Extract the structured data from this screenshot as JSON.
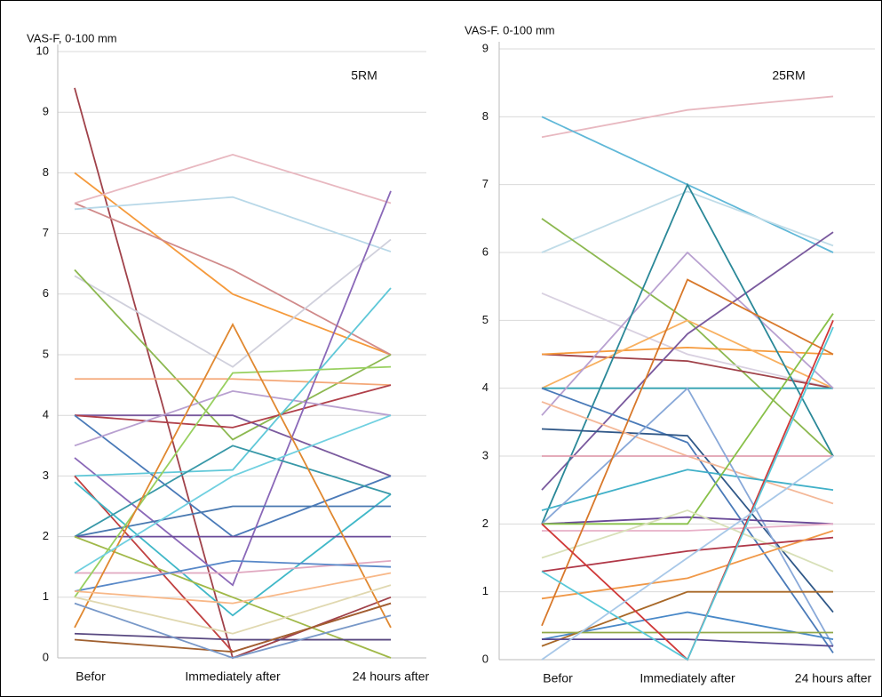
{
  "chart_data": [
    {
      "type": "line",
      "title": "VAS-F, 0-100 mm",
      "annotation": "5RM",
      "categories": [
        "Befor",
        "Immediately after",
        "24 hours after"
      ],
      "ylim": [
        0,
        10
      ],
      "yticks": [
        0,
        1,
        2,
        3,
        4,
        5,
        6,
        7,
        8,
        9,
        10
      ],
      "grid": true,
      "series": [
        {
          "color": "#a0424a",
          "values": [
            9.4,
            0,
            1
          ]
        },
        {
          "color": "#f59a3c",
          "values": [
            8,
            6,
            5
          ]
        },
        {
          "color": "#d08a8a",
          "values": [
            7.5,
            6.4,
            5
          ]
        },
        {
          "color": "#e8b8c0",
          "values": [
            7.5,
            8.3,
            7.5
          ]
        },
        {
          "color": "#b8d8e8",
          "values": [
            7.4,
            7.6,
            6.7
          ]
        },
        {
          "color": "#d0d0dc",
          "values": [
            6.3,
            4.8,
            6.9
          ]
        },
        {
          "color": "#8cb850",
          "values": [
            6.4,
            3.6,
            5
          ]
        },
        {
          "color": "#f4a878",
          "values": [
            4.6,
            4.6,
            4.5
          ]
        },
        {
          "color": "#7a5a9e",
          "values": [
            4,
            4,
            3
          ]
        },
        {
          "color": "#b0404a",
          "values": [
            4,
            3.8,
            4.5
          ]
        },
        {
          "color": "#4a7ab8",
          "values": [
            4,
            2,
            3
          ]
        },
        {
          "color": "#b8a0d0",
          "values": [
            3.5,
            4.4,
            4
          ]
        },
        {
          "color": "#8a68b8",
          "values": [
            3.3,
            1.2,
            7.7
          ]
        },
        {
          "color": "#60c8d8",
          "values": [
            3,
            3.1,
            6.1
          ]
        },
        {
          "color": "#c04040",
          "values": [
            3,
            0.1,
            0.9
          ]
        },
        {
          "color": "#40b8c8",
          "values": [
            2.9,
            0.7,
            2.7
          ]
        },
        {
          "color": "#3898a8",
          "values": [
            2,
            3.5,
            2.7
          ]
        },
        {
          "color": "#4878b0",
          "values": [
            2,
            2.5,
            2.5
          ]
        },
        {
          "color": "#6a4a98",
          "values": [
            2,
            2,
            2
          ]
        },
        {
          "color": "#a0b848",
          "values": [
            2,
            1,
            0
          ]
        },
        {
          "color": "#e0a8c0",
          "values": [
            1.4,
            1.4,
            1.6
          ]
        },
        {
          "color": "#5888c8",
          "values": [
            1.1,
            1.6,
            1.5
          ]
        },
        {
          "color": "#98d060",
          "values": [
            1,
            4.7,
            4.8
          ]
        },
        {
          "color": "#e08830",
          "values": [
            0.5,
            5.5,
            0.5
          ]
        },
        {
          "color": "#f8b888",
          "values": [
            1.1,
            0.9,
            1.4
          ]
        },
        {
          "color": "#e0d8b0",
          "values": [
            1,
            0.4,
            1.2
          ]
        },
        {
          "color": "#584880",
          "values": [
            0.4,
            0.3,
            0.3
          ]
        },
        {
          "color": "#a06030",
          "values": [
            0.3,
            0.1,
            0.9
          ]
        },
        {
          "color": "#7898c8",
          "values": [
            0.9,
            0,
            0.7
          ]
        },
        {
          "color": "#70d0e0",
          "values": [
            1.4,
            3,
            4
          ]
        }
      ]
    },
    {
      "type": "line",
      "title": "VAS-F. 0-100 mm",
      "annotation": "25RM",
      "categories": [
        "Befor",
        "Immediately after",
        "24 hours after"
      ],
      "ylim": [
        0,
        9
      ],
      "yticks": [
        0,
        1,
        2,
        3,
        4,
        5,
        6,
        7,
        8,
        9
      ],
      "grid": true,
      "series": [
        {
          "color": "#e8b8c0",
          "values": [
            7.7,
            8.1,
            8.3
          ]
        },
        {
          "color": "#60b8d8",
          "values": [
            8,
            7,
            6
          ]
        },
        {
          "color": "#c0dce8",
          "values": [
            6,
            6.9,
            6.1
          ]
        },
        {
          "color": "#8cb850",
          "values": [
            6.5,
            5,
            3
          ]
        },
        {
          "color": "#d8d0e0",
          "values": [
            5.4,
            4.5,
            4
          ]
        },
        {
          "color": "#a0424a",
          "values": [
            4.5,
            4.4,
            4
          ]
        },
        {
          "color": "#f59a3c",
          "values": [
            4.5,
            4.6,
            4.5
          ]
        },
        {
          "color": "#f8b060",
          "values": [
            4,
            5,
            4
          ]
        },
        {
          "color": "#30a0b0",
          "values": [
            4,
            4,
            4
          ]
        },
        {
          "color": "#b8a0d0",
          "values": [
            3.6,
            6,
            4
          ]
        },
        {
          "color": "#7a5a9e",
          "values": [
            2.5,
            4.8,
            6.3
          ]
        },
        {
          "color": "#2a8898",
          "values": [
            2,
            7,
            3
          ]
        },
        {
          "color": "#4a7ab8",
          "values": [
            4,
            3.2,
            0.1
          ]
        },
        {
          "color": "#305888",
          "values": [
            3.4,
            3.3,
            0.7
          ]
        },
        {
          "color": "#f4b898",
          "values": [
            3.8,
            3,
            2.3
          ]
        },
        {
          "color": "#e0a0b0",
          "values": [
            3,
            3,
            3
          ]
        },
        {
          "color": "#40b0c8",
          "values": [
            2.2,
            2.8,
            2.5
          ]
        },
        {
          "color": "#88a8d8",
          "values": [
            2,
            4,
            0.2
          ]
        },
        {
          "color": "#6a4a98",
          "values": [
            2,
            2.1,
            2
          ]
        },
        {
          "color": "#88c048",
          "values": [
            2,
            2,
            5.1
          ]
        },
        {
          "color": "#e8b0c8",
          "values": [
            1.9,
            1.9,
            2
          ]
        },
        {
          "color": "#d8e0b8",
          "values": [
            1.5,
            2.2,
            1.3
          ]
        },
        {
          "color": "#b03848",
          "values": [
            1.3,
            1.6,
            1.8
          ]
        },
        {
          "color": "#f09848",
          "values": [
            0.9,
            1.2,
            1.9
          ]
        },
        {
          "color": "#d8782a",
          "values": [
            0.5,
            5.6,
            4.5
          ]
        },
        {
          "color": "#4888c8",
          "values": [
            0.3,
            0.7,
            0.3
          ]
        },
        {
          "color": "#a86828",
          "values": [
            0.2,
            1,
            1
          ]
        },
        {
          "color": "#90a848",
          "values": [
            0.4,
            0.4,
            0.4
          ]
        },
        {
          "color": "#584890",
          "values": [
            0.3,
            0.3,
            0.2
          ]
        },
        {
          "color": "#d03838",
          "values": [
            2,
            0,
            5
          ]
        },
        {
          "color": "#58c8d8",
          "values": [
            1.3,
            0,
            4.9
          ]
        },
        {
          "color": "#a8c8e8",
          "values": [
            0,
            1.5,
            3
          ]
        }
      ]
    }
  ]
}
